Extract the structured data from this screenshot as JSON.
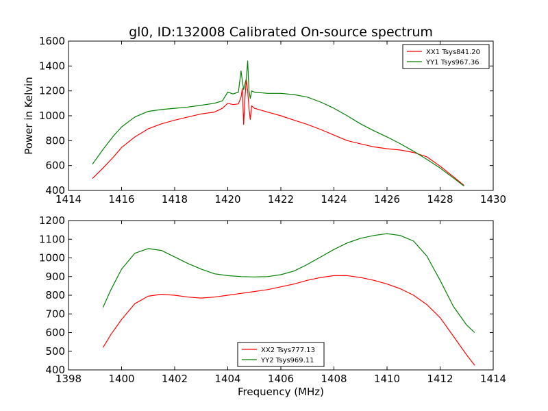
{
  "figure": {
    "title": "gl0, ID:132008 Calibrated On-source spectrum",
    "xlabel": "Frequency (MHz)"
  },
  "chart_data": [
    {
      "type": "line",
      "ylabel": "Power in Kelvin",
      "xlim": [
        1414,
        1430
      ],
      "ylim": [
        400,
        1600
      ],
      "xticks": [
        "1414",
        "1416",
        "1418",
        "1420",
        "1422",
        "1424",
        "1426",
        "1428",
        "1430"
      ],
      "yticks": [
        "400",
        "600",
        "800",
        "1000",
        "1200",
        "1400",
        "1600"
      ],
      "legend_position": "top-right",
      "series": [
        {
          "name": "XX1 Tsys841.20",
          "color": "#ff0000",
          "x": [
            1414.9,
            1415.3,
            1415.7,
            1416.0,
            1416.5,
            1417.0,
            1417.5,
            1418.0,
            1418.5,
            1419.0,
            1419.5,
            1419.8,
            1420.0,
            1420.2,
            1420.4,
            1420.5,
            1420.55,
            1420.6,
            1420.65,
            1420.7,
            1420.75,
            1420.8,
            1420.85,
            1420.9,
            1421.0,
            1421.5,
            1422.0,
            1422.5,
            1423.0,
            1423.5,
            1424.0,
            1424.5,
            1425.0,
            1425.5,
            1426.0,
            1426.5,
            1427.0,
            1427.5,
            1428.0,
            1428.5,
            1428.9
          ],
          "y": [
            495,
            580,
            670,
            745,
            830,
            895,
            935,
            965,
            990,
            1015,
            1030,
            1060,
            1100,
            1090,
            1095,
            1150,
            1220,
            930,
            1150,
            1290,
            1200,
            1060,
            970,
            1080,
            1060,
            1030,
            1000,
            965,
            930,
            890,
            845,
            800,
            775,
            750,
            735,
            725,
            705,
            670,
            595,
            510,
            440
          ]
        },
        {
          "name": "YY1 Tsys967.36",
          "color": "#008000",
          "x": [
            1414.9,
            1415.3,
            1415.7,
            1416.0,
            1416.5,
            1417.0,
            1417.5,
            1418.0,
            1418.5,
            1419.0,
            1419.5,
            1419.8,
            1420.0,
            1420.2,
            1420.4,
            1420.5,
            1420.55,
            1420.6,
            1420.7,
            1420.75,
            1420.8,
            1420.85,
            1420.9,
            1421.0,
            1421.5,
            1422.0,
            1422.5,
            1423.0,
            1423.5,
            1424.0,
            1424.5,
            1425.0,
            1425.5,
            1426.0,
            1426.5,
            1427.0,
            1427.5,
            1428.0,
            1428.5,
            1428.9
          ],
          "y": [
            610,
            730,
            840,
            910,
            990,
            1035,
            1050,
            1060,
            1070,
            1085,
            1100,
            1120,
            1190,
            1175,
            1190,
            1360,
            1280,
            1210,
            1300,
            1440,
            1200,
            1140,
            1200,
            1190,
            1180,
            1180,
            1170,
            1150,
            1110,
            1060,
            1000,
            935,
            880,
            830,
            775,
            715,
            650,
            580,
            500,
            435
          ]
        }
      ]
    },
    {
      "type": "line",
      "xlabel": "Frequency (MHz)",
      "xlim": [
        1398,
        1414
      ],
      "ylim": [
        400,
        1200
      ],
      "xticks": [
        "1398",
        "1400",
        "1402",
        "1404",
        "1406",
        "1408",
        "1410",
        "1412",
        "1414"
      ],
      "yticks": [
        "400",
        "500",
        "600",
        "700",
        "800",
        "900",
        "1000",
        "1100",
        "1200"
      ],
      "legend_position": "bottom-center",
      "series": [
        {
          "name": "XX2 Tsys777.13",
          "color": "#ff0000",
          "x": [
            1399.3,
            1399.6,
            1400.0,
            1400.5,
            1401.0,
            1401.5,
            1402.0,
            1402.5,
            1403.0,
            1403.5,
            1404.0,
            1404.5,
            1405.0,
            1405.5,
            1406.0,
            1406.5,
            1407.0,
            1407.5,
            1408.0,
            1408.5,
            1409.0,
            1409.5,
            1410.0,
            1410.5,
            1411.0,
            1411.5,
            1412.0,
            1412.5,
            1413.0,
            1413.3
          ],
          "y": [
            520,
            590,
            670,
            755,
            795,
            805,
            800,
            790,
            785,
            790,
            800,
            810,
            820,
            830,
            845,
            860,
            880,
            895,
            905,
            905,
            895,
            880,
            860,
            835,
            800,
            750,
            680,
            580,
            480,
            425
          ]
        },
        {
          "name": "YY2 Tsys969.11",
          "color": "#008000",
          "x": [
            1399.3,
            1399.6,
            1400.0,
            1400.5,
            1401.0,
            1401.5,
            1402.0,
            1402.5,
            1403.0,
            1403.5,
            1404.0,
            1404.5,
            1405.0,
            1405.5,
            1406.0,
            1406.5,
            1407.0,
            1407.5,
            1408.0,
            1408.5,
            1409.0,
            1409.5,
            1410.0,
            1410.5,
            1411.0,
            1411.5,
            1412.0,
            1412.5,
            1413.0,
            1413.3
          ],
          "y": [
            735,
            830,
            940,
            1025,
            1050,
            1040,
            1005,
            970,
            940,
            915,
            905,
            900,
            898,
            900,
            910,
            930,
            965,
            1005,
            1045,
            1080,
            1105,
            1120,
            1130,
            1120,
            1090,
            1010,
            880,
            740,
            640,
            600
          ]
        }
      ]
    }
  ]
}
